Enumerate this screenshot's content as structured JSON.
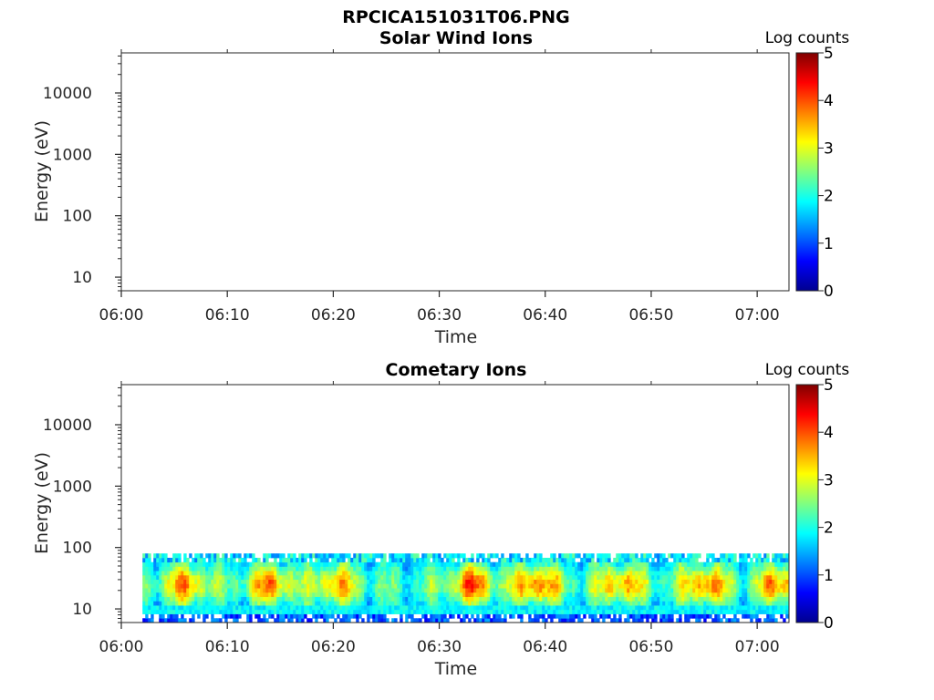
{
  "figure_title": "RPCICA151031T06.PNG",
  "colormap": [
    "#00008f",
    "#0000ff",
    "#0080ff",
    "#00ffff",
    "#80ff80",
    "#ffff00",
    "#ff8000",
    "#ff0000",
    "#800000"
  ],
  "chart_data": [
    {
      "type": "heatmap",
      "title": "Solar Wind Ions",
      "xlabel": "Time",
      "ylabel": "Energy (eV)",
      "y_scale": "log",
      "xlim": [
        "06:00",
        "07:03"
      ],
      "ylim": [
        6,
        45000
      ],
      "x_ticks": [
        "06:00",
        "06:10",
        "06:20",
        "06:30",
        "06:40",
        "06:50",
        "07:00"
      ],
      "y_ticks": [
        "10",
        "100",
        "1000",
        "10000"
      ],
      "colorbar": {
        "label": "Log counts",
        "range": [
          0,
          5
        ],
        "ticks": [
          "0",
          "1",
          "2",
          "3",
          "4",
          "5"
        ]
      },
      "data": "empty"
    },
    {
      "type": "heatmap",
      "title": "Cometary Ions",
      "xlabel": "Time",
      "ylabel": "Energy (eV)",
      "y_scale": "log",
      "xlim": [
        "06:00",
        "07:03"
      ],
      "ylim": [
        6,
        45000
      ],
      "x_ticks": [
        "06:00",
        "06:10",
        "06:20",
        "06:30",
        "06:40",
        "06:50",
        "07:00"
      ],
      "y_ticks": [
        "10",
        "100",
        "1000",
        "10000"
      ],
      "colorbar": {
        "label": "Log counts",
        "range": [
          0,
          5
        ],
        "ticks": [
          "0",
          "1",
          "2",
          "3",
          "4",
          "5"
        ]
      },
      "data_extent": {
        "time_start": "06:02",
        "time_end": "07:03",
        "energy_min_eV": 6,
        "energy_max_eV": 80
      },
      "peak_log_counts": [
        {
          "time": "06:06",
          "value": 3.6
        },
        {
          "time": "06:14",
          "value": 3.7
        },
        {
          "time": "06:20",
          "value": 3.5
        },
        {
          "time": "06:33",
          "value": 3.9
        },
        {
          "time": "06:39",
          "value": 3.9
        },
        {
          "time": "06:47",
          "value": 3.6
        },
        {
          "time": "06:55",
          "value": 3.8
        },
        {
          "time": "07:02",
          "value": 3.7
        }
      ]
    }
  ]
}
